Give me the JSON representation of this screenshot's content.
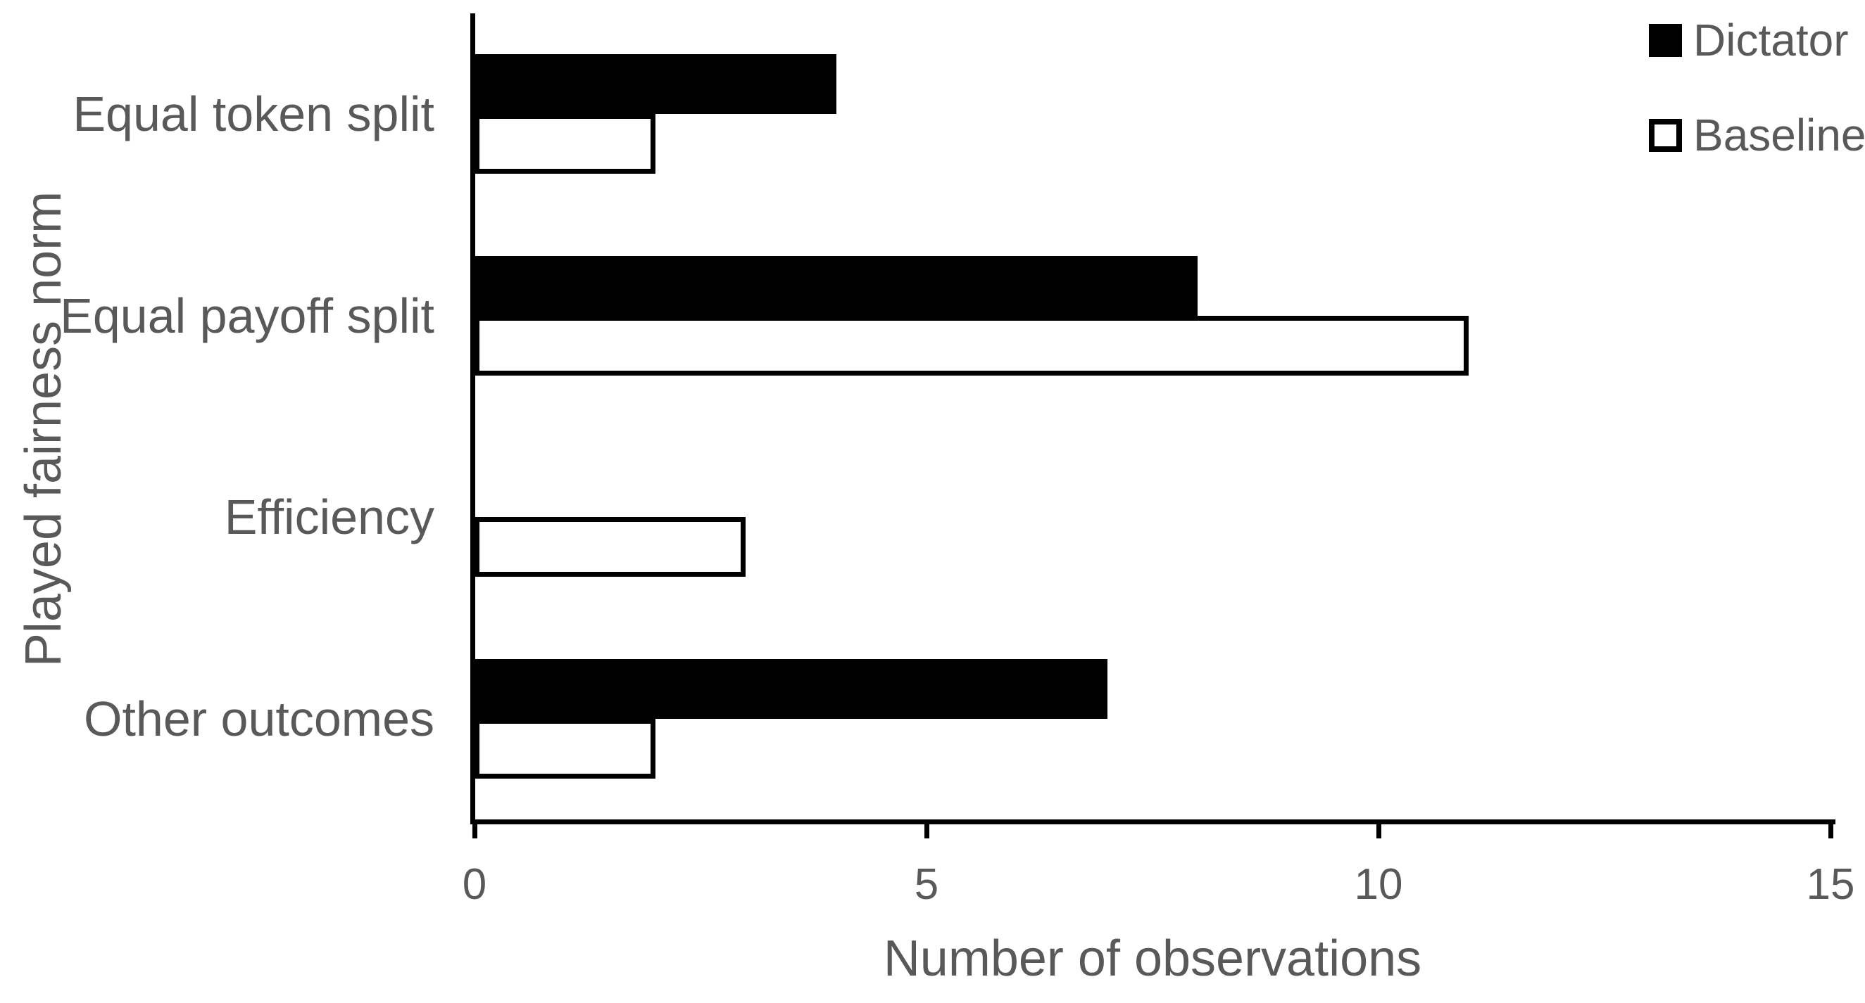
{
  "chart_data": {
    "type": "bar",
    "orientation": "horizontal",
    "categories": [
      "Equal token split",
      "Equal payoff split",
      "Efficiency",
      "Other outcomes"
    ],
    "series": [
      {
        "name": "Dictator",
        "style": "filled",
        "color": "#000000",
        "values": [
          4,
          8,
          0,
          7
        ]
      },
      {
        "name": "Baseline",
        "style": "outlined",
        "color": "#ffffff",
        "values": [
          2,
          11,
          3,
          2
        ]
      }
    ],
    "xlabel": "Number of observations",
    "ylabel": "Played fairness norm",
    "xlim": [
      0,
      15
    ],
    "xticks": [
      0,
      5,
      10,
      15
    ],
    "grid": false,
    "legend_position": "top-right"
  },
  "colors": {
    "text": "#595959",
    "axis": "#000000",
    "bar_fill": "#000000",
    "bar_outline": "#000000",
    "background": "#ffffff"
  }
}
